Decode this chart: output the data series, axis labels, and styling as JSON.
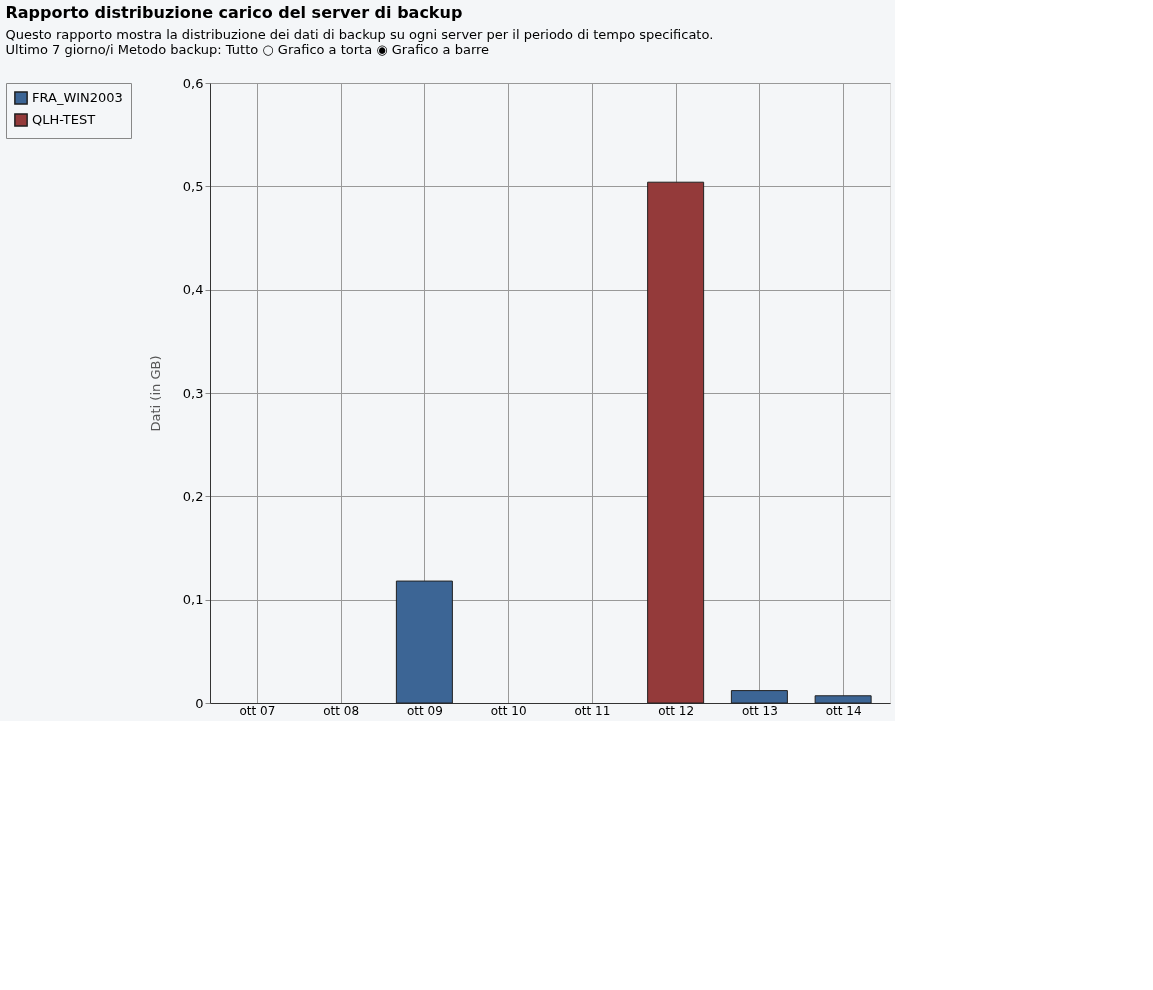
{
  "chart_data": {
    "type": "bar",
    "title": "Rapporto distribuzione carico del server di backup",
    "subtitle": "Questo rapporto mostra la distribuzione dei dati di backup su ogni server per il periodo di tempo specificato.",
    "annotations": [
      "Ultimo 7 giorno/i    Metodo backup: Tutto    ○ Grafico a torta    ◉ Grafico a barre"
    ],
    "categories": [
      "ott 07",
      "ott 08",
      "ott 09",
      "ott 10",
      "ott 11",
      "ott 12",
      "ott 13",
      "ott 14"
    ],
    "series": [
      {
        "name": "FRA_WIN2003",
        "color": "#3c6595",
        "values": [
          null,
          null,
          0.118,
          null,
          null,
          null,
          0.012,
          0.007
        ]
      },
      {
        "name": "QLH-TEST",
        "color": "#943a3a",
        "values": [
          null,
          null,
          null,
          null,
          null,
          0.504,
          null,
          null
        ]
      }
    ],
    "ylabel": "Dati (in GB)",
    "ylim": [
      0,
      0.6
    ],
    "yticks": [
      0,
      {
        "value": 0.1,
        "label": "0,1"
      },
      {
        "value": 0.2,
        "label": "0,2"
      },
      {
        "value": 0.3,
        "label": "0,3"
      },
      {
        "value": 0.4,
        "label": "0,4"
      },
      {
        "value": 0.5,
        "label": "0,5"
      },
      {
        "value": 0.6,
        "label": "0,6"
      }
    ],
    "grid": true,
    "legend": "top left"
  }
}
